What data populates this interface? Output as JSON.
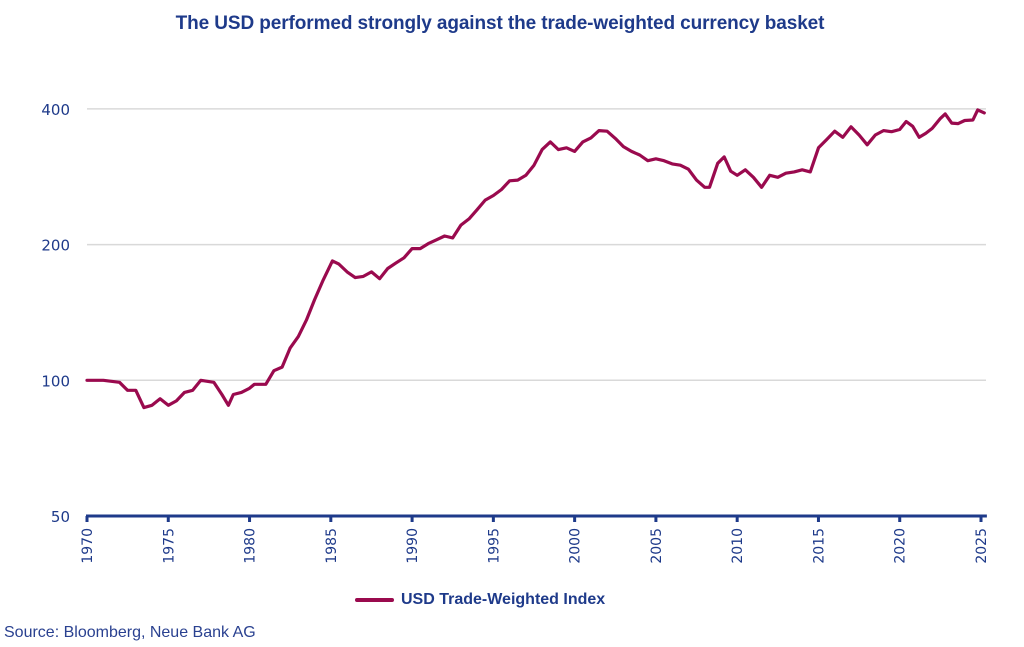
{
  "chart_data": {
    "type": "line",
    "title": "The USD performed strongly against the trade-weighted currency basket",
    "xlabel": "",
    "ylabel": "",
    "yscale": "log",
    "ylim": [
      50,
      420
    ],
    "xlim": [
      1970,
      2025.3
    ],
    "yticks": [
      50,
      100,
      200,
      400
    ],
    "xticks": [
      1970,
      1975,
      1980,
      1985,
      1990,
      1995,
      2000,
      2005,
      2010,
      2015,
      2020,
      2025
    ],
    "grid": true,
    "legend_position": "bottom-center",
    "series": [
      {
        "name": "USD Trade-Weighted Index",
        "color": "#9a0a4e",
        "x": [
          1970.0,
          1971.0,
          1972.0,
          1972.5,
          1973.0,
          1973.5,
          1974.0,
          1974.5,
          1975.0,
          1975.5,
          1976.0,
          1976.5,
          1977.0,
          1977.8,
          1978.3,
          1978.7,
          1979.0,
          1979.5,
          1980.0,
          1980.3,
          1981.0,
          1981.5,
          1982.0,
          1982.5,
          1983.0,
          1983.5,
          1984.0,
          1984.5,
          1985.1,
          1985.5,
          1986.0,
          1986.5,
          1987.0,
          1987.5,
          1988.0,
          1988.5,
          1989.0,
          1989.5,
          1990.0,
          1990.5,
          1991.0,
          1991.5,
          1992.0,
          1992.5,
          1993.0,
          1993.5,
          1994.0,
          1994.5,
          1995.0,
          1995.5,
          1996.0,
          1996.5,
          1997.0,
          1997.5,
          1998.0,
          1998.5,
          1999.0,
          1999.5,
          2000.0,
          2000.5,
          2001.0,
          2001.5,
          2002.0,
          2002.5,
          2003.0,
          2003.5,
          2004.0,
          2004.5,
          2005.0,
          2005.5,
          2006.0,
          2006.5,
          2007.0,
          2007.5,
          2008.0,
          2008.3,
          2008.8,
          2009.2,
          2009.6,
          2010.0,
          2010.5,
          2011.0,
          2011.5,
          2012.0,
          2012.5,
          2013.0,
          2013.5,
          2014.0,
          2014.5,
          2015.0,
          2015.5,
          2016.0,
          2016.5,
          2017.0,
          2017.5,
          2018.0,
          2018.5,
          2019.0,
          2019.5,
          2020.0,
          2020.4,
          2020.8,
          2021.2,
          2021.6,
          2022.0,
          2022.5,
          2022.8,
          2023.2,
          2023.6,
          2024.0,
          2024.5,
          2024.8,
          2025.2
        ],
        "values": [
          100,
          100,
          99,
          95,
          95,
          87,
          88,
          91,
          88,
          90,
          94,
          95,
          100,
          99,
          93,
          88,
          93,
          94,
          96,
          98,
          98,
          105,
          107,
          118,
          125,
          136,
          151,
          166,
          184,
          181,
          174,
          169,
          170,
          174,
          168,
          177,
          182,
          187,
          196,
          196,
          201,
          205,
          209,
          207,
          221,
          228,
          239,
          251,
          257,
          265,
          277,
          278,
          285,
          300,
          325,
          338,
          325,
          328,
          322,
          338,
          345,
          358,
          357,
          344,
          330,
          322,
          316,
          307,
          310,
          307,
          302,
          300,
          294,
          278,
          268,
          268,
          303,
          313,
          291,
          285,
          293,
          282,
          268,
          285,
          282,
          288,
          290,
          293,
          290,
          328,
          342,
          357,
          346,
          365,
          350,
          333,
          350,
          358,
          356,
          360,
          375,
          366,
          346,
          353,
          362,
          381,
          390,
          372,
          371,
          377,
          378,
          398,
          392
        ]
      }
    ]
  },
  "legend": {
    "label": "USD Trade-Weighted Index"
  },
  "source": "Source: Bloomberg, Neue Bank AG"
}
